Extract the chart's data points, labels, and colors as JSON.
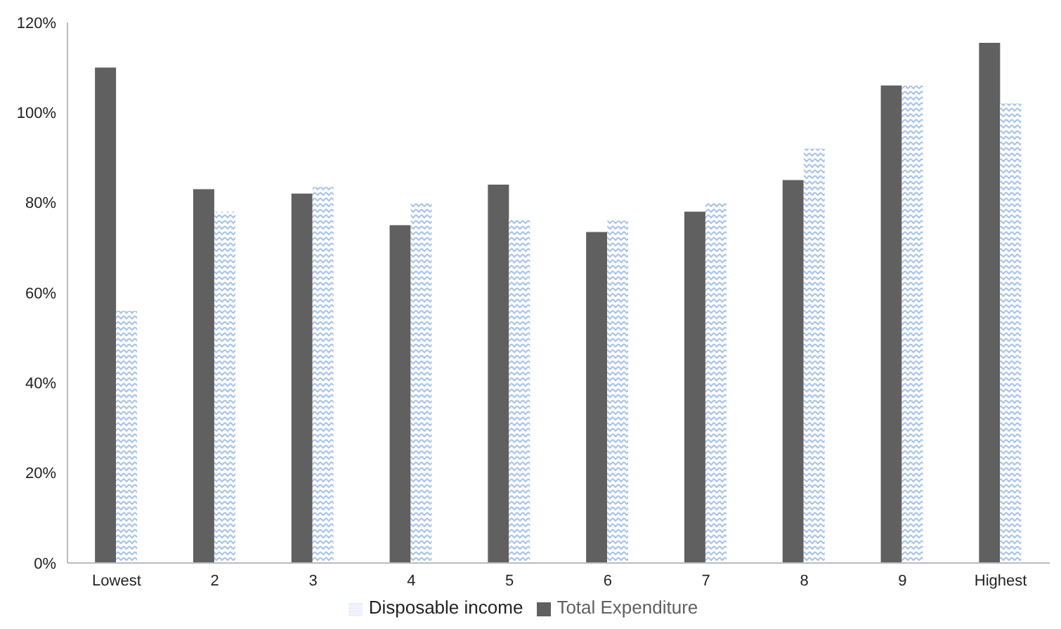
{
  "chart_data": {
    "type": "bar",
    "categories": [
      "Lowest",
      "2",
      "3",
      "4",
      "5",
      "6",
      "7",
      "8",
      "9",
      "Highest"
    ],
    "series": [
      {
        "name": "Total Expenditure",
        "color": "#606060",
        "values": [
          110,
          83,
          82,
          75,
          84,
          73.5,
          78,
          85,
          106,
          115.5
        ]
      },
      {
        "name": "Disposable income",
        "color": "#a9c3e6",
        "values": [
          56,
          78,
          83.5,
          80,
          76.5,
          76,
          80,
          92,
          106,
          102
        ]
      }
    ],
    "ylim": [
      0,
      120
    ],
    "yticks": [
      {
        "value": 0,
        "label": "0%"
      },
      {
        "value": 20,
        "label": "20%"
      },
      {
        "value": 40,
        "label": "40%"
      },
      {
        "value": 60,
        "label": "60%"
      },
      {
        "value": 80,
        "label": "80%"
      },
      {
        "value": 100,
        "label": "100%"
      },
      {
        "value": 120,
        "label": "120%"
      }
    ],
    "grid": false,
    "legend": "bottom"
  }
}
